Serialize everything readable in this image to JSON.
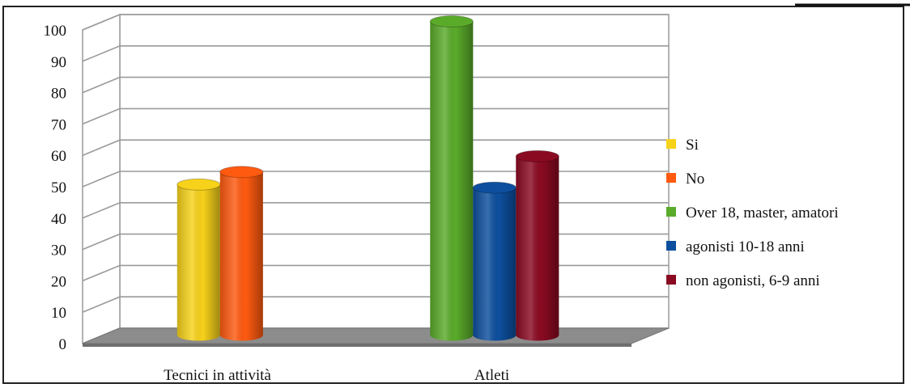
{
  "chart_data": {
    "type": "bar",
    "title": "",
    "xlabel": "",
    "ylabel": "",
    "ylim": [
      0,
      100
    ],
    "yticks": [
      0,
      10,
      20,
      30,
      40,
      50,
      60,
      70,
      80,
      90,
      100
    ],
    "grid": true,
    "legend_position": "right",
    "categories": [
      "Tecnici in attività",
      "Atleti"
    ],
    "series": [
      {
        "name": "Si",
        "color": "#f7d21a",
        "values": [
          48,
          null
        ]
      },
      {
        "name": "No",
        "color": "#ff5a10",
        "values": [
          52,
          null
        ]
      },
      {
        "name": "Over 18, master, amatori",
        "color": "#5aab2a",
        "values": [
          null,
          100
        ]
      },
      {
        "name": "agonisti 10-18 anni",
        "color": "#0d4f9e",
        "values": [
          null,
          47
        ]
      },
      {
        "name": "non agonisti, 6-9 anni",
        "color": "#8a0a22",
        "values": [
          null,
          57
        ]
      }
    ]
  }
}
